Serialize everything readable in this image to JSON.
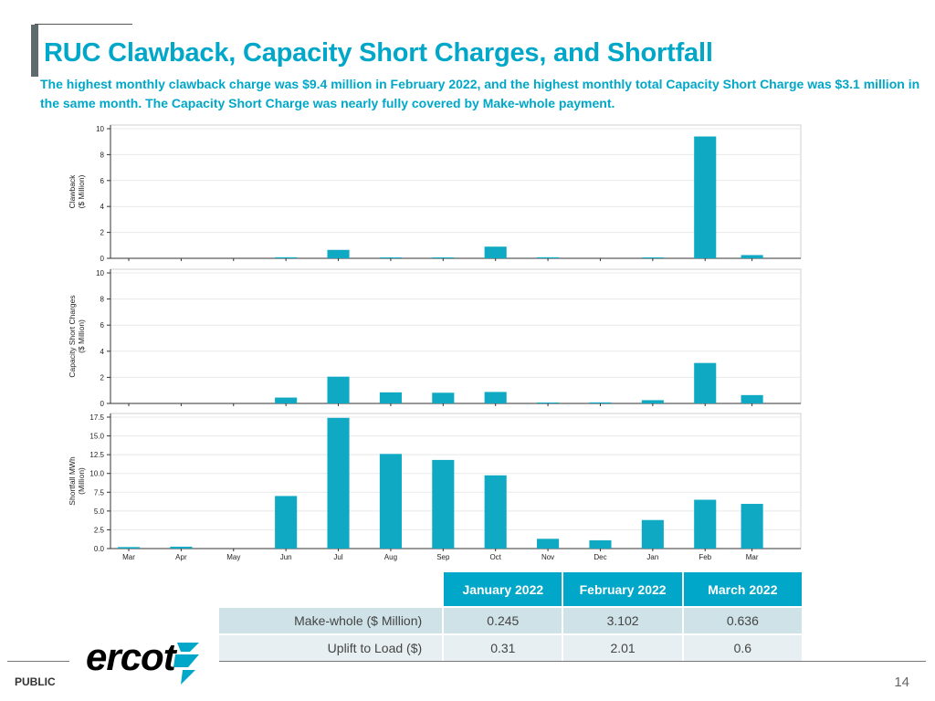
{
  "slide": {
    "title": "RUC Clawback, Capacity Short Charges, and Shortfall",
    "subtitle": "The highest monthly clawback charge was $9.4 million in February 2022, and the highest monthly total Capacity Short Charge was $3.1 million in the same month. The Capacity Short Charge was nearly fully covered by Make-whole payment.",
    "footer_label": "PUBLIC",
    "page_number": "14",
    "logo_text": "ercot"
  },
  "colors": {
    "accent": "#00a7c8",
    "bar": "#0fa9c3",
    "table_header": "#00a7c8",
    "row_dark": "#cfe2e8",
    "row_light": "#e7eff2",
    "logo_gray": "#4f5b60"
  },
  "chart_data": [
    {
      "type": "bar",
      "categories": [
        "Mar",
        "Apr",
        "May",
        "Jun",
        "Jul",
        "Aug",
        "Sep",
        "Oct",
        "Nov",
        "Dec",
        "Jan",
        "Feb",
        "Mar"
      ],
      "values": [
        0.0,
        0.0,
        0.0,
        0.08,
        0.65,
        0.05,
        0.05,
        0.9,
        0.08,
        0.0,
        0.05,
        9.4,
        0.25
      ],
      "ylabel_lines": [
        "Clawback",
        "($ Million)"
      ],
      "ylim": [
        0,
        10
      ],
      "yticks": [
        0,
        2,
        4,
        6,
        8,
        10
      ],
      "ytick_labels": [
        "0",
        "2",
        "4",
        "6",
        "8",
        "10"
      ],
      "grid": true
    },
    {
      "type": "bar",
      "categories": [
        "Mar",
        "Apr",
        "May",
        "Jun",
        "Jul",
        "Aug",
        "Sep",
        "Oct",
        "Nov",
        "Dec",
        "Jan",
        "Feb",
        "Mar"
      ],
      "values": [
        0.0,
        0.0,
        0.0,
        0.45,
        2.05,
        0.85,
        0.82,
        0.88,
        0.05,
        0.08,
        0.25,
        3.1,
        0.64
      ],
      "ylabel_lines": [
        "Capacity Short Charges",
        "($ Million)"
      ],
      "ylim": [
        0,
        10
      ],
      "yticks": [
        0,
        2,
        4,
        6,
        8,
        10
      ],
      "ytick_labels": [
        "0",
        "2",
        "4",
        "6",
        "8",
        "10"
      ],
      "grid": true
    },
    {
      "type": "bar",
      "categories": [
        "Mar",
        "Apr",
        "May",
        "Jun",
        "Jul",
        "Aug",
        "Sep",
        "Oct",
        "Nov",
        "Dec",
        "Jan",
        "Feb",
        "Mar"
      ],
      "values": [
        0.2,
        0.25,
        0.0,
        7.0,
        17.4,
        12.6,
        11.8,
        9.75,
        1.3,
        1.1,
        3.8,
        6.5,
        5.95
      ],
      "ylabel_lines": [
        "Shortfall MWh",
        "(Million)"
      ],
      "ylim": [
        0,
        17.5
      ],
      "yticks": [
        0,
        2.5,
        5,
        7.5,
        10,
        12.5,
        15,
        17.5
      ],
      "ytick_labels": [
        "0.0",
        "2.5",
        "5.0",
        "7.5",
        "10.0",
        "12.5",
        "15.0",
        "17.5"
      ],
      "grid": true,
      "show_xlabels": true
    }
  ],
  "table": {
    "headers": [
      "January 2022",
      "February 2022",
      "March 2022"
    ],
    "rows": [
      {
        "label": "Make-whole ($ Million)",
        "values": [
          "0.245",
          "3.102",
          "0.636"
        ]
      },
      {
        "label": "Uplift to Load ($)",
        "values": [
          "0.31",
          "2.01",
          "0.6"
        ]
      }
    ]
  }
}
